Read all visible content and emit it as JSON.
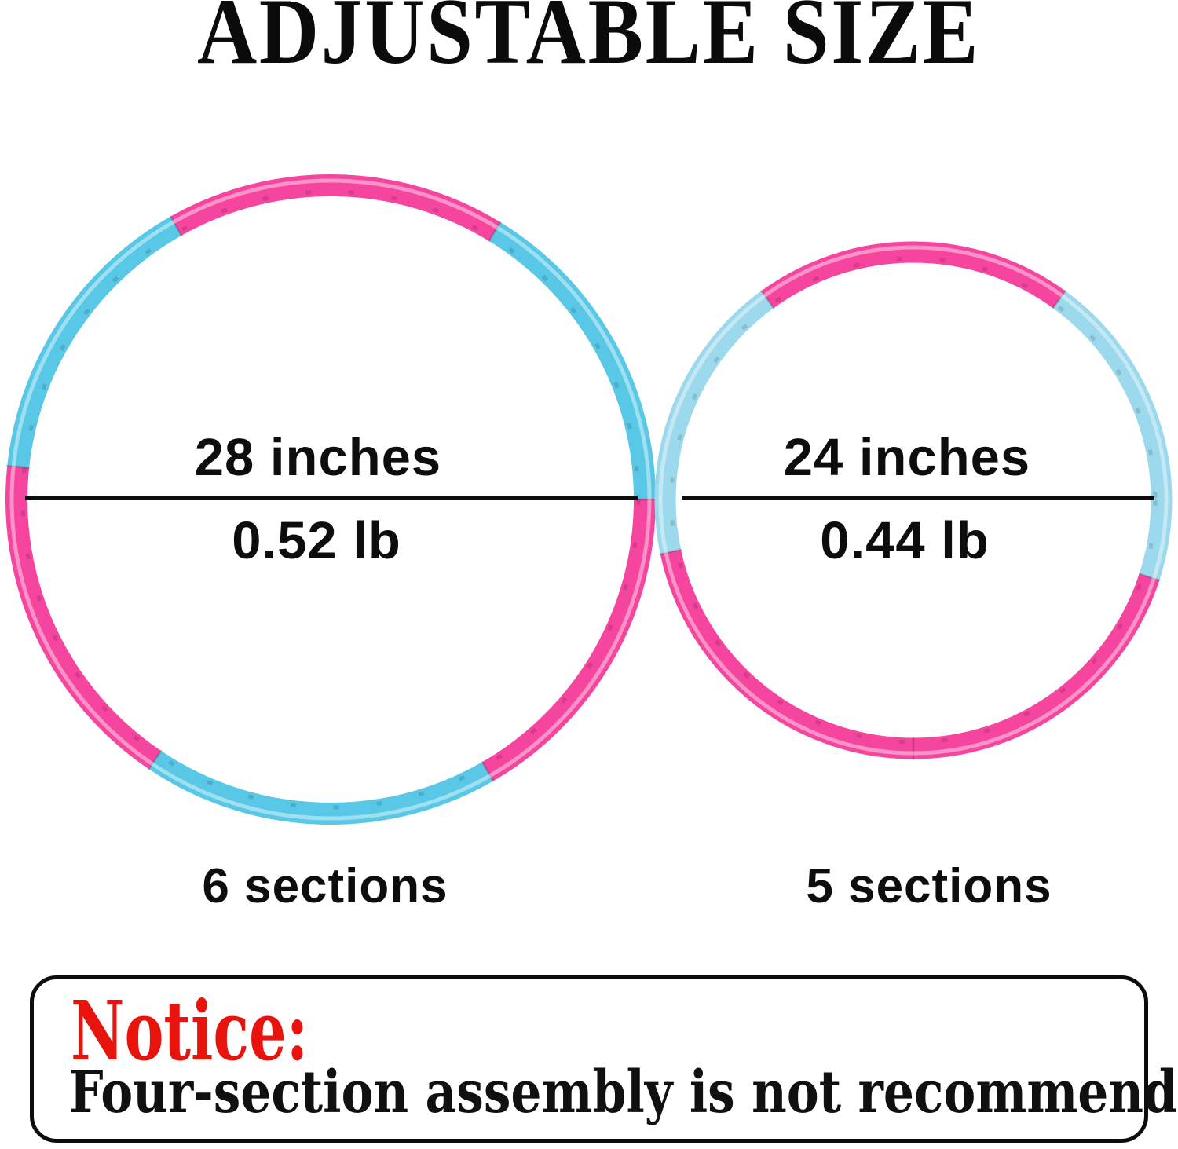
{
  "page": {
    "title": "ADJUSTABLE SIZE",
    "background_color": "#ffffff",
    "text_color": "#0d0d0d",
    "line_color": "#0d0d0d"
  },
  "hoops": [
    {
      "name": "large-hoop",
      "size_label": "28 inches",
      "weight_label": "0.52 lb",
      "sections_label": "6 sections",
      "diameter_inches": 28,
      "weight_lb": 0.52,
      "sections_count": 6,
      "colors": {
        "pink": "#f6459f",
        "blue": "#58c8e6"
      },
      "segments": [
        {
          "from": 0,
          "to": 58.5,
          "color": "blue"
        },
        {
          "from": 58.5,
          "to": 119.5,
          "color": "pink"
        },
        {
          "from": 119.5,
          "to": 174,
          "color": "blue"
        },
        {
          "from": 174,
          "to": 236,
          "color": "pink"
        },
        {
          "from": 236,
          "to": 300,
          "color": "blue"
        },
        {
          "from": 300,
          "to": 360,
          "color": "pink"
        }
      ]
    },
    {
      "name": "small-hoop",
      "size_label": "24 inches",
      "weight_label": "0.44 lb",
      "sections_label": "5 sections",
      "diameter_inches": 24,
      "weight_lb": 0.44,
      "sections_count": 5,
      "colors": {
        "pink": "#f6459f",
        "blue": "#9cd9ec"
      },
      "segments": [
        {
          "from": -18,
          "to": 54,
          "color": "blue"
        },
        {
          "from": 54,
          "to": 126,
          "color": "pink"
        },
        {
          "from": 126,
          "to": 192,
          "color": "blue"
        },
        {
          "from": 192,
          "to": 270,
          "color": "pink"
        },
        {
          "from": 270,
          "to": 342,
          "color": "pink"
        }
      ]
    }
  ],
  "notice": {
    "heading": "Notice:",
    "heading_color": "#e9130e",
    "body": "Four-section assembly is not recommended."
  }
}
